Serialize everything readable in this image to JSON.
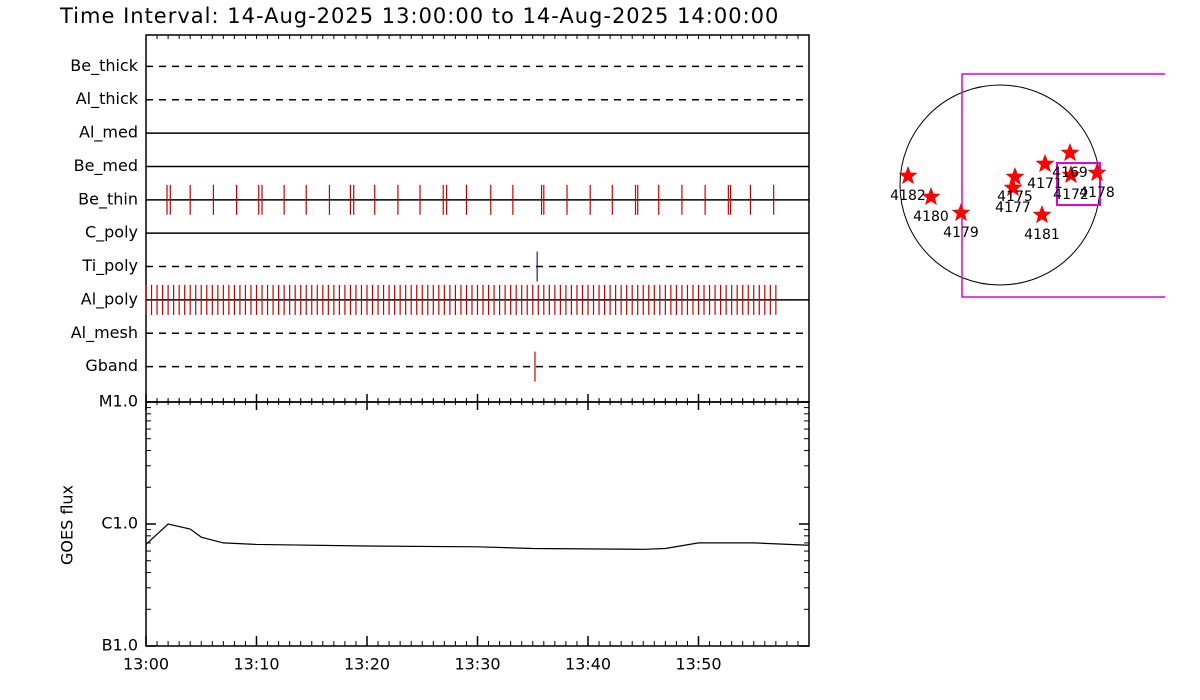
{
  "title": "Time Interval: 14-Aug-2025 13:00:00 to 14-Aug-2025 14:00:00",
  "chart_data": [
    {
      "type": "timeline",
      "xlim": [
        0,
        60
      ],
      "filters": [
        {
          "name": "Be_thick",
          "line": "dashed",
          "color": "#cc0000",
          "events": []
        },
        {
          "name": "Al_thick",
          "line": "dashed",
          "color": "#cc0000",
          "events": []
        },
        {
          "name": "Al_med",
          "line": "solid",
          "color": "#cc0000",
          "events": []
        },
        {
          "name": "Be_med",
          "line": "solid",
          "color": "#cc0000",
          "events": []
        },
        {
          "name": "Be_thin",
          "line": "solid",
          "color": "#cc0000",
          "events": [
            1.9,
            2.2,
            4.0,
            6.1,
            8.2,
            10.2,
            10.5,
            12.5,
            14.5,
            16.6,
            18.5,
            18.8,
            20.7,
            22.8,
            24.8,
            26.9,
            27.2,
            29.0,
            31.2,
            33.2,
            35.8,
            36.0,
            38.1,
            40.2,
            42.2,
            44.3,
            44.5,
            46.4,
            48.5,
            50.6,
            52.7,
            52.9,
            54.7,
            56.8
          ]
        },
        {
          "name": "C_poly",
          "line": "solid",
          "color": "#cc0000",
          "events": []
        },
        {
          "name": "Ti_poly",
          "line": "dashed",
          "color": "#1a1a99",
          "events": [
            35.4
          ]
        },
        {
          "name": "Al_poly",
          "line": "solid",
          "color": "#cc0000",
          "events": [
            0,
            0.5,
            1,
            1.5,
            2,
            2.5,
            3,
            3.5,
            4,
            4.5,
            5,
            5.5,
            6,
            6.5,
            7,
            7.5,
            8,
            8.5,
            9,
            9.5,
            10,
            10.5,
            11,
            11.5,
            12,
            12.5,
            13,
            13.5,
            14,
            14.5,
            15,
            15.5,
            16,
            16.5,
            17,
            17.5,
            18,
            18.5,
            19,
            19.5,
            20,
            20.5,
            21,
            21.5,
            22,
            22.5,
            23,
            23.5,
            24,
            24.5,
            25,
            25.5,
            26,
            26.5,
            27,
            27.5,
            28,
            28.5,
            29,
            29.5,
            30,
            30.5,
            31,
            31.5,
            32,
            32.5,
            33,
            33.5,
            34,
            34.5,
            35,
            35.5,
            36,
            36.5,
            37,
            37.5,
            38,
            38.5,
            39,
            39.5,
            40,
            40.5,
            41,
            41.5,
            42,
            42.5,
            43,
            43.5,
            44,
            44.5,
            45,
            45.5,
            46,
            46.5,
            47,
            47.5,
            48,
            48.5,
            49,
            49.5,
            50,
            50.5,
            51,
            51.5,
            52,
            52.5,
            53,
            53.5,
            54,
            54.5,
            55,
            55.5,
            56,
            56.5,
            57
          ]
        },
        {
          "name": "Al_mesh",
          "line": "dashed",
          "color": "#cc0000",
          "events": []
        },
        {
          "name": "Gband",
          "line": "dashed",
          "color": "#cc0000",
          "events": [
            35.2
          ]
        }
      ]
    },
    {
      "type": "line",
      "ylabel": "GOES flux",
      "log_scale": true,
      "color": "#000000",
      "x": [
        0,
        2,
        4,
        5,
        7,
        10,
        20,
        30,
        35,
        45,
        47,
        50,
        55,
        60
      ],
      "values": [
        6.8e-07,
        1e-06,
        9.1e-07,
        7.8e-07,
        7e-07,
        6.8e-07,
        6.6e-07,
        6.5e-07,
        6.3e-07,
        6.2e-07,
        6.3e-07,
        7e-07,
        7e-07,
        6.7e-07
      ],
      "xlim": [
        0,
        60
      ],
      "xticks": [
        {
          "value": 0,
          "label": "13:00"
        },
        {
          "value": 10,
          "label": "13:10"
        },
        {
          "value": 20,
          "label": "13:20"
        },
        {
          "value": 30,
          "label": "13:30"
        },
        {
          "value": 40,
          "label": "13:40"
        },
        {
          "value": 50,
          "label": "13:50"
        }
      ],
      "ylim": [
        1e-07,
        1e-05
      ],
      "yticks": [
        {
          "value": 1e-07,
          "label": "B1.0"
        },
        {
          "value": 1e-06,
          "label": "C1.0"
        },
        {
          "value": 1e-05,
          "label": "M1.0"
        }
      ]
    },
    {
      "type": "scatter",
      "color": "#ff0000",
      "xlim": [
        -1100,
        1100
      ],
      "ylim": [
        -1100,
        1100
      ],
      "labels": [
        "4182",
        "4180",
        "4179",
        "4175",
        "4177",
        "4171",
        "4169",
        "4172",
        "4178",
        "4181"
      ],
      "x": [
        -920,
        -690,
        -390,
        150,
        130,
        450,
        700,
        710,
        970,
        420
      ],
      "y": [
        90,
        -120,
        -280,
        80,
        -30,
        210,
        320,
        100,
        120,
        -300
      ]
    }
  ]
}
